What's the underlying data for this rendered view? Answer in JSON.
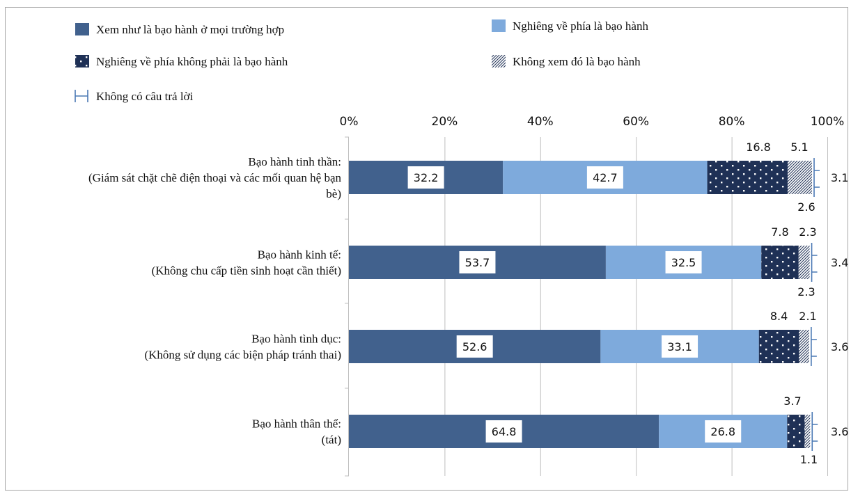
{
  "chart_data": {
    "type": "bar",
    "orientation": "horizontal",
    "stacked": true,
    "xlim": [
      0,
      100
    ],
    "x_ticks": [
      "0%",
      "20%",
      "40%",
      "60%",
      "80%",
      "100%"
    ],
    "categories": [
      [
        "Bạo hành tinh thần:",
        "(Giám sát chặt chẽ điện thoại và các mối quan hệ bạn",
        "bè)"
      ],
      [
        "Bạo hành kinh tế:",
        "(Không chu cấp tiền sinh hoạt cần thiết)"
      ],
      [
        "Bạo hành tình dục:",
        "(Không sử dụng các biện pháp tránh thai)"
      ],
      [
        "Bạo hành thân thể:",
        "(tát)"
      ]
    ],
    "series": [
      {
        "name": "Xem như là bạo hành ở mọi trường hợp",
        "values": [
          32.2,
          53.7,
          52.6,
          64.8
        ],
        "labels": [
          "32.2",
          "53.7",
          "52.6",
          "64.8"
        ],
        "color": "#41618d",
        "pattern": "solid"
      },
      {
        "name": "Nghiêng về phía là bạo hành",
        "values": [
          42.7,
          32.5,
          33.1,
          26.8
        ],
        "labels": [
          "42.7",
          "32.5",
          "33.1",
          "26.8"
        ],
        "color": "#7eaadc",
        "pattern": "solid"
      },
      {
        "name": "Nghiêng về phía không phải là bạo hành",
        "values": [
          16.8,
          7.8,
          8.4,
          3.7
        ],
        "labels": [
          "16.8",
          "7.8",
          "8.4",
          "3.7"
        ],
        "color": "#1f3156",
        "pattern": "dots"
      },
      {
        "name": "Không xem đó là bạo hành",
        "values": [
          5.1,
          2.3,
          2.1,
          1.1
        ],
        "labels": [
          "5.1",
          "2.3",
          "2.1",
          "1.1"
        ],
        "color": "#1f3156",
        "pattern": "hatch"
      },
      {
        "name": "Không có câu trả lời",
        "values": [
          3.1,
          3.4,
          3.6,
          3.6
        ],
        "labels": [
          "3.1",
          "3.4",
          "3.6",
          "3.6"
        ],
        "color": "#4a78b4",
        "pattern": "bracket"
      }
    ],
    "extra_labels": [
      "2.6",
      "2.3",
      "",
      ""
    ],
    "grid": true,
    "legend_position": "top"
  }
}
